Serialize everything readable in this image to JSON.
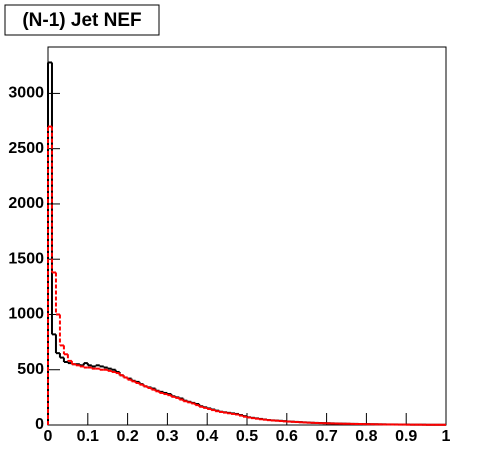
{
  "chart_data": {
    "type": "histogram",
    "title": "(N-1) Jet NEF",
    "bins": [
      0,
      0.01,
      0.02,
      0.03,
      0.04,
      0.05,
      0.06,
      0.07,
      0.08,
      0.09,
      0.1,
      0.11,
      0.12,
      0.13,
      0.14,
      0.15,
      0.16,
      0.17,
      0.18,
      0.19,
      0.2,
      0.21,
      0.22,
      0.23,
      0.24,
      0.25,
      0.26,
      0.27,
      0.28,
      0.29,
      0.3,
      0.31,
      0.32,
      0.33,
      0.34,
      0.35,
      0.36,
      0.37,
      0.38,
      0.39,
      0.4,
      0.41,
      0.42,
      0.43,
      0.44,
      0.45,
      0.46,
      0.47,
      0.48,
      0.49,
      0.5,
      0.51,
      0.52,
      0.53,
      0.54,
      0.55,
      0.56,
      0.57,
      0.58,
      0.59,
      0.6,
      0.61,
      0.62,
      0.63,
      0.64,
      0.65,
      0.66,
      0.67,
      0.68,
      0.69,
      0.7,
      0.71,
      0.72,
      0.73,
      0.74,
      0.75,
      0.76,
      0.77,
      0.78,
      0.79,
      0.8,
      0.81,
      0.82,
      0.83,
      0.84,
      0.85,
      0.86,
      0.87,
      0.88,
      0.89,
      0.9,
      0.91,
      0.92,
      0.93,
      0.94,
      0.95,
      0.96,
      0.97,
      0.98,
      0.99,
      1
    ],
    "series": [
      {
        "color": "#000000",
        "dash": false,
        "values": [
          3280,
          820,
          650,
          610,
          570,
          560,
          550,
          550,
          540,
          560,
          540,
          530,
          540,
          530,
          520,
          510,
          500,
          480,
          450,
          430,
          420,
          400,
          390,
          370,
          350,
          340,
          330,
          310,
          300,
          290,
          280,
          260,
          250,
          240,
          220,
          210,
          200,
          190,
          170,
          160,
          150,
          140,
          130,
          120,
          115,
          110,
          105,
          100,
          90,
          80,
          70,
          65,
          60,
          55,
          50,
          45,
          42,
          40,
          38,
          35,
          32,
          30,
          28,
          26,
          24,
          22,
          20,
          19,
          18,
          17,
          16,
          15,
          14,
          13,
          12,
          11,
          10,
          10,
          9,
          8,
          8,
          7,
          7,
          6,
          6,
          5,
          5,
          5,
          4,
          4,
          4,
          3,
          3,
          3,
          3,
          2,
          2,
          2,
          2,
          2
        ]
      },
      {
        "color": "#ff0000",
        "dash": true,
        "values": [
          2700,
          1380,
          1000,
          720,
          640,
          580,
          550,
          540,
          530,
          520,
          520,
          510,
          510,
          500,
          500,
          490,
          480,
          470,
          450,
          430,
          410,
          395,
          380,
          365,
          350,
          335,
          320,
          305,
          290,
          280,
          270,
          255,
          245,
          230,
          215,
          205,
          195,
          180,
          165,
          155,
          145,
          135,
          125,
          118,
          112,
          106,
          100,
          95,
          85,
          75,
          68,
          62,
          57,
          52,
          48,
          44,
          41,
          39,
          36,
          33,
          31,
          29,
          27,
          25,
          23,
          21,
          20,
          18,
          17,
          16,
          15,
          14,
          13,
          12,
          11,
          11,
          10,
          9,
          9,
          8,
          7,
          7,
          6,
          6,
          5,
          5,
          5,
          4,
          4,
          4,
          3,
          3,
          3,
          3,
          2,
          2,
          2,
          2,
          2,
          2
        ]
      }
    ],
    "xlim": [
      0,
      1
    ],
    "ylim": [
      0,
      3420
    ],
    "xticks": [
      0,
      0.1,
      0.2,
      0.3,
      0.4,
      0.5,
      0.6,
      0.7,
      0.8,
      0.9,
      1
    ],
    "yticks": [
      0,
      500,
      1000,
      1500,
      2000,
      2500,
      3000
    ]
  }
}
